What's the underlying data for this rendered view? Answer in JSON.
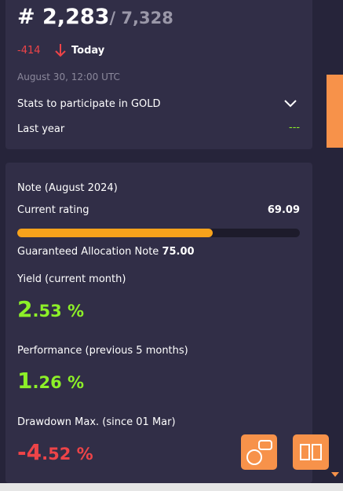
{
  "rank": {
    "position": "# 2,283",
    "total": "/ 7,328",
    "change": "-414",
    "period": "Today",
    "timestamp": "August 30, 12:00 UTC"
  },
  "stats": {
    "dropdown": "Stats to participate in GOLD",
    "last_year_label": "Last year",
    "last_year_value": "---"
  },
  "note": {
    "title": "Note (August 2024)",
    "rating_label": "Current rating",
    "rating": 69.09,
    "rating_scale": [
      0,
      100
    ],
    "guaranteed_label": "Guaranteed Allocation Note",
    "guaranteed_value": "75.00"
  },
  "metrics": [
    {
      "label": "Yield (current month)",
      "whole": "2",
      "fraction": ".53 %",
      "tone": "positive"
    },
    {
      "label": "Performance (previous 5 months)",
      "whole": "1",
      "fraction": ".26 %",
      "tone": "positive"
    },
    {
      "label": "Drawdown Max. (since 01 Mar)",
      "whole": "-4",
      "fraction": ".52 %",
      "tone": "negative"
    }
  ]
}
